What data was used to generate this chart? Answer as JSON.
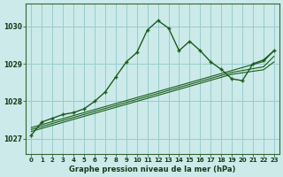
{
  "title": "Graphe pression niveau de la mer (hPa)",
  "bg_color": "#cceaea",
  "grid_color": "#99cccc",
  "line_color": "#1a5c1a",
  "xlim": [
    -0.5,
    23.5
  ],
  "ylim": [
    1026.6,
    1030.6
  ],
  "yticks": [
    1027,
    1028,
    1029,
    1030
  ],
  "xticks": [
    0,
    1,
    2,
    3,
    4,
    5,
    6,
    7,
    8,
    9,
    10,
    11,
    12,
    13,
    14,
    15,
    16,
    17,
    18,
    19,
    20,
    21,
    22,
    23
  ],
  "wavy": [
    1027.1,
    1027.45,
    1027.55,
    1027.65,
    1027.7,
    1027.8,
    1028.0,
    1028.25,
    1028.65,
    1029.05,
    1029.3,
    1029.9,
    1030.15,
    1029.95,
    1029.35,
    1029.6,
    1029.35,
    1029.05,
    1028.85,
    1028.6,
    1028.55,
    1029.0,
    1029.1,
    1029.35
  ],
  "line1": [
    1027.3,
    1027.38,
    1027.46,
    1027.54,
    1027.62,
    1027.7,
    1027.78,
    1027.86,
    1027.94,
    1028.02,
    1028.1,
    1028.18,
    1028.26,
    1028.34,
    1028.42,
    1028.5,
    1028.58,
    1028.66,
    1028.74,
    1028.82,
    1028.9,
    1028.98,
    1029.06,
    1029.35
  ],
  "line2": [
    1027.25,
    1027.33,
    1027.41,
    1027.49,
    1027.57,
    1027.65,
    1027.73,
    1027.81,
    1027.89,
    1027.97,
    1028.05,
    1028.13,
    1028.21,
    1028.29,
    1028.37,
    1028.45,
    1028.53,
    1028.61,
    1028.69,
    1028.77,
    1028.82,
    1028.87,
    1028.92,
    1029.2
  ],
  "line3": [
    1027.2,
    1027.28,
    1027.36,
    1027.44,
    1027.52,
    1027.6,
    1027.68,
    1027.76,
    1027.84,
    1027.92,
    1028.0,
    1028.08,
    1028.16,
    1028.24,
    1028.32,
    1028.4,
    1028.48,
    1028.56,
    1028.64,
    1028.72,
    1028.76,
    1028.8,
    1028.84,
    1029.05
  ]
}
